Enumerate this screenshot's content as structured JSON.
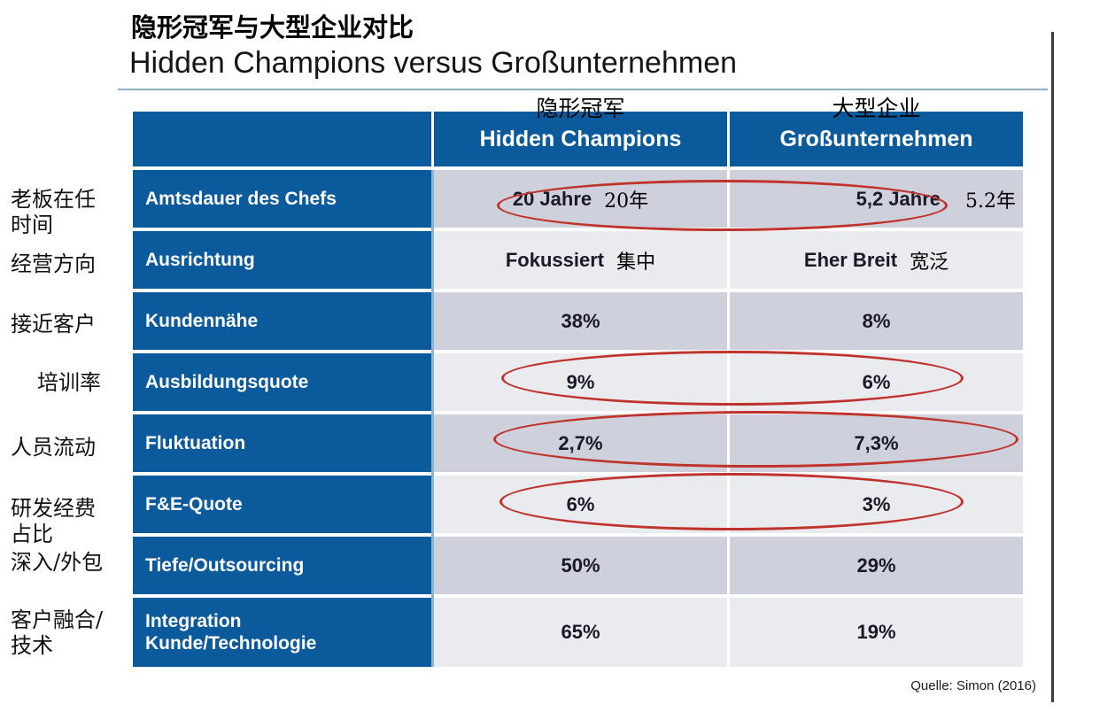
{
  "slide": {
    "title_zh": "隐形冠军与大型企业对比",
    "title_en": "Hidden Champions versus Großunternehmen",
    "source": "Quelle: Simon (2016)"
  },
  "table": {
    "col_headers": [
      {
        "zh": "隐形冠军",
        "de": "Hidden Champions"
      },
      {
        "zh": "大型企业",
        "de": "Großunternehmen"
      }
    ],
    "rows": [
      {
        "margin": [
          "老板在任",
          "时间"
        ],
        "label": [
          "Amtsdauer des Chefs"
        ],
        "hc": {
          "de": "20 Jahre",
          "zh": "20年"
        },
        "gu": {
          "de": "5,2 Jahre",
          "zh": "5.2年"
        },
        "circled": true
      },
      {
        "margin": [
          "经营方向"
        ],
        "label": [
          "Ausrichtung"
        ],
        "hc": {
          "de": "Fokussiert",
          "zh": "集中"
        },
        "gu": {
          "de": "Eher Breit",
          "zh": "宽泛"
        },
        "circled": false
      },
      {
        "margin": [
          "接近客户"
        ],
        "label": [
          "Kundennähe"
        ],
        "hc": {
          "de": "38%"
        },
        "gu": {
          "de": "8%"
        },
        "circled": false
      },
      {
        "margin": [
          "培训率"
        ],
        "label": [
          "Ausbildungsquote"
        ],
        "hc": {
          "de": "9%"
        },
        "gu": {
          "de": "6%"
        },
        "circled": true
      },
      {
        "margin": [
          "人员流动"
        ],
        "label": [
          "Fluktuation"
        ],
        "hc": {
          "de": "2,7%"
        },
        "gu": {
          "de": "7,3%"
        },
        "circled": true
      },
      {
        "margin": [
          "研发经费",
          "占比"
        ],
        "label": [
          "F&E-Quote"
        ],
        "hc": {
          "de": "6%"
        },
        "gu": {
          "de": "3%"
        },
        "circled": true
      },
      {
        "margin": [
          "深入/外包"
        ],
        "label": [
          "Tiefe/Outsourcing"
        ],
        "hc": {
          "de": "50%"
        },
        "gu": {
          "de": "29%"
        },
        "circled": false
      },
      {
        "margin": [
          "客户融合/",
          "技术"
        ],
        "label": [
          "Integration",
          "Kunde/Technologie"
        ],
        "hc": {
          "de": "65%"
        },
        "gu": {
          "de": "19%"
        },
        "circled": false
      }
    ]
  },
  "colors": {
    "blue": "#0b5a9b",
    "row-dark": "#ced1db",
    "row-light": "#e9ebef",
    "red": "#c0322c",
    "stripe": "#8ab4d8",
    "rule": "#92aec6",
    "text-dark": "#191929",
    "line-dark": "#3a3a3a"
  }
}
